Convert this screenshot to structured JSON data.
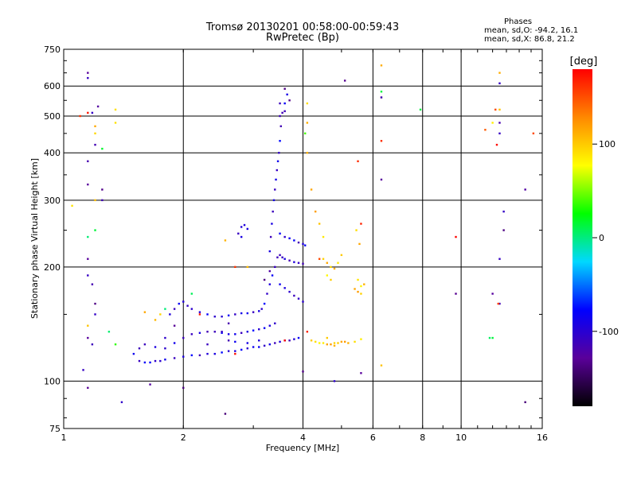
{
  "title_line1": "Tromsø 20130201 00:58:00-00:59:43",
  "title_line2": "RwPretec (Bp)",
  "stats": {
    "heading": "Phases",
    "line_O": "mean, sd,O: -94.2, 16.1",
    "line_X": "mean, sd,X:  86.8, 21.2"
  },
  "colorbar": {
    "label": "[deg]",
    "tick_labels": [
      "100",
      "0",
      "-100"
    ],
    "tick_values": [
      100,
      0,
      -100
    ],
    "range": [
      -180,
      180
    ],
    "colors": [
      "#000000",
      "#5a009a",
      "#0000ff",
      "#00d8ff",
      "#00ff00",
      "#ffff00",
      "#ff8800",
      "#ff0000"
    ]
  },
  "chart_data": {
    "type": "scatter",
    "xlabel": "Frequency [MHz]",
    "ylabel": "Stationary phase Virtual Height [km]",
    "xscale": "log",
    "yscale": "log",
    "xlim": [
      1,
      16
    ],
    "ylim": [
      75,
      750
    ],
    "xticks": [
      1,
      2,
      4,
      6,
      8,
      10,
      16
    ],
    "xtick_labels": [
      "1",
      "2",
      "4",
      "6",
      "8",
      "10",
      "16"
    ],
    "yticks": [
      75,
      100,
      200,
      300,
      400,
      500,
      600,
      750
    ],
    "ytick_labels": [
      "75",
      "100",
      "200",
      "300",
      "400",
      "500",
      "600",
      "750"
    ],
    "grid": true,
    "color_dimension": "phase [deg]",
    "series": [
      {
        "color_phase": -95,
        "points": [
          [
            1.55,
            113
          ],
          [
            1.6,
            112
          ],
          [
            1.65,
            112
          ],
          [
            1.7,
            113
          ],
          [
            1.75,
            113
          ],
          [
            1.8,
            114
          ],
          [
            1.9,
            115
          ],
          [
            2.0,
            116
          ],
          [
            2.1,
            117
          ],
          [
            2.2,
            117
          ],
          [
            2.3,
            118
          ],
          [
            2.4,
            118
          ],
          [
            2.5,
            119
          ],
          [
            2.6,
            120
          ],
          [
            2.7,
            120
          ],
          [
            2.8,
            121
          ],
          [
            2.9,
            122
          ],
          [
            3.0,
            123
          ],
          [
            3.1,
            123
          ],
          [
            3.2,
            124
          ],
          [
            3.3,
            125
          ],
          [
            3.4,
            126
          ],
          [
            3.5,
            127
          ],
          [
            3.6,
            128
          ],
          [
            3.7,
            128
          ],
          [
            3.8,
            129
          ],
          [
            3.9,
            130
          ],
          [
            1.5,
            118
          ],
          [
            1.55,
            122
          ],
          [
            1.6,
            125
          ],
          [
            1.7,
            123
          ],
          [
            1.8,
            122
          ],
          [
            1.9,
            126
          ],
          [
            2.0,
            130
          ],
          [
            2.1,
            133
          ],
          [
            2.2,
            134
          ],
          [
            2.3,
            135
          ],
          [
            2.4,
            135
          ],
          [
            2.5,
            134
          ],
          [
            2.6,
            133
          ],
          [
            2.7,
            133
          ],
          [
            2.8,
            134
          ],
          [
            2.9,
            135
          ],
          [
            3.0,
            136
          ],
          [
            3.1,
            137
          ],
          [
            3.2,
            138
          ],
          [
            3.3,
            140
          ],
          [
            3.4,
            142
          ],
          [
            1.85,
            150
          ],
          [
            1.9,
            155
          ],
          [
            1.95,
            160
          ],
          [
            2.0,
            162
          ],
          [
            2.05,
            158
          ],
          [
            2.1,
            155
          ],
          [
            2.2,
            152
          ],
          [
            2.3,
            150
          ],
          [
            2.4,
            148
          ],
          [
            2.5,
            148
          ],
          [
            2.6,
            149
          ],
          [
            2.7,
            150
          ],
          [
            2.8,
            151
          ],
          [
            2.9,
            151
          ],
          [
            3.0,
            152
          ],
          [
            3.1,
            153
          ],
          [
            3.15,
            155
          ],
          [
            3.2,
            160
          ],
          [
            3.25,
            170
          ],
          [
            3.3,
            180
          ],
          [
            3.35,
            190
          ],
          [
            3.4,
            200
          ],
          [
            3.45,
            212
          ],
          [
            3.5,
            215
          ],
          [
            3.55,
            212
          ],
          [
            3.6,
            210
          ],
          [
            3.7,
            208
          ],
          [
            3.8,
            206
          ],
          [
            3.9,
            205
          ],
          [
            4.0,
            204
          ],
          [
            3.3,
            220
          ],
          [
            3.32,
            240
          ],
          [
            3.34,
            260
          ],
          [
            3.36,
            280
          ],
          [
            3.38,
            300
          ],
          [
            3.4,
            320
          ],
          [
            3.42,
            340
          ],
          [
            3.44,
            360
          ],
          [
            3.46,
            380
          ],
          [
            3.48,
            400
          ],
          [
            3.5,
            430
          ],
          [
            3.52,
            470
          ],
          [
            3.55,
            510
          ],
          [
            3.6,
            540
          ],
          [
            3.65,
            570
          ],
          [
            3.5,
            245
          ],
          [
            3.6,
            240
          ],
          [
            3.7,
            238
          ],
          [
            3.8,
            235
          ],
          [
            3.9,
            232
          ],
          [
            4.0,
            230
          ],
          [
            4.05,
            228
          ],
          [
            2.75,
            245
          ],
          [
            2.8,
            255
          ],
          [
            2.85,
            258
          ],
          [
            2.9,
            252
          ],
          [
            2.8,
            240
          ],
          [
            3.5,
            180
          ],
          [
            3.6,
            176
          ],
          [
            3.7,
            172
          ],
          [
            3.8,
            168
          ],
          [
            3.9,
            165
          ],
          [
            4.0,
            162
          ],
          [
            2.5,
            135
          ],
          [
            2.6,
            128
          ],
          [
            2.7,
            127
          ],
          [
            2.9,
            126
          ],
          [
            3.1,
            128
          ]
        ]
      },
      {
        "color_phase": 100,
        "points": [
          [
            4.2,
            128
          ],
          [
            4.3,
            127
          ],
          [
            4.4,
            126
          ],
          [
            4.5,
            126
          ],
          [
            4.6,
            125
          ],
          [
            4.7,
            125
          ],
          [
            4.8,
            126
          ],
          [
            4.9,
            126
          ],
          [
            5.0,
            127
          ],
          [
            5.1,
            127
          ],
          [
            5.2,
            126
          ],
          [
            5.4,
            127
          ],
          [
            5.6,
            129
          ],
          [
            4.5,
            210
          ],
          [
            4.6,
            205
          ],
          [
            4.7,
            200
          ],
          [
            4.8,
            198
          ],
          [
            4.9,
            205
          ],
          [
            5.0,
            215
          ],
          [
            4.6,
            190
          ],
          [
            4.7,
            185
          ],
          [
            5.4,
            175
          ],
          [
            5.5,
            172
          ],
          [
            5.6,
            178
          ],
          [
            5.7,
            180
          ],
          [
            5.5,
            185
          ],
          [
            5.6,
            170
          ],
          [
            4.1,
            540
          ],
          [
            4.1,
            480
          ],
          [
            4.1,
            400
          ],
          [
            4.2,
            320
          ],
          [
            4.3,
            280
          ],
          [
            4.4,
            260
          ],
          [
            4.5,
            240
          ],
          [
            1.35,
            520
          ],
          [
            1.35,
            480
          ],
          [
            1.2,
            470
          ],
          [
            1.2,
            450
          ],
          [
            1.2,
            300
          ],
          [
            1.05,
            290
          ],
          [
            1.15,
            140
          ],
          [
            1.6,
            152
          ],
          [
            1.7,
            145
          ],
          [
            1.75,
            150
          ],
          [
            2.55,
            235
          ],
          [
            2.9,
            200
          ],
          [
            5.45,
            250
          ],
          [
            5.55,
            230
          ],
          [
            6.3,
            680
          ],
          [
            6.3,
            560
          ],
          [
            6.3,
            110
          ],
          [
            4.6,
            130
          ],
          [
            4.8,
            124
          ],
          [
            12.5,
            650
          ],
          [
            12.5,
            520
          ],
          [
            12.0,
            480
          ]
        ]
      },
      {
        "color_phase": -120,
        "points": [
          [
            1.15,
            650
          ],
          [
            1.15,
            630
          ],
          [
            1.18,
            510
          ],
          [
            1.22,
            530
          ],
          [
            1.2,
            420
          ],
          [
            1.25,
            320
          ],
          [
            1.15,
            380
          ],
          [
            1.15,
            330
          ],
          [
            1.25,
            300
          ],
          [
            1.15,
            210
          ],
          [
            1.15,
            190
          ],
          [
            1.18,
            180
          ],
          [
            1.2,
            160
          ],
          [
            1.2,
            150
          ],
          [
            1.15,
            130
          ],
          [
            1.18,
            125
          ],
          [
            1.12,
            107
          ],
          [
            1.15,
            96
          ],
          [
            1.4,
            88
          ],
          [
            1.65,
            98
          ],
          [
            2.0,
            96
          ],
          [
            2.55,
            82
          ],
          [
            4.0,
            106
          ],
          [
            4.8,
            100
          ],
          [
            5.1,
            620
          ],
          [
            6.3,
            340
          ],
          [
            5.6,
            105
          ],
          [
            6.3,
            560
          ],
          [
            9.7,
            170
          ],
          [
            12.5,
            610
          ],
          [
            12.5,
            480
          ],
          [
            12.5,
            450
          ],
          [
            12.8,
            280
          ],
          [
            12.8,
            250
          ],
          [
            12.5,
            210
          ],
          [
            12.0,
            170
          ],
          [
            12.5,
            160
          ],
          [
            14.5,
            320
          ],
          [
            14.5,
            88
          ],
          [
            1.8,
            130
          ],
          [
            1.9,
            140
          ],
          [
            2.3,
            125
          ],
          [
            2.6,
            142
          ],
          [
            3.6,
            590
          ],
          [
            3.7,
            550
          ],
          [
            3.5,
            540
          ],
          [
            3.6,
            515
          ],
          [
            3.5,
            500
          ],
          [
            3.3,
            195
          ],
          [
            3.2,
            185
          ]
        ]
      },
      {
        "color_phase": 160,
        "points": [
          [
            1.15,
            510
          ],
          [
            1.1,
            500
          ],
          [
            4.1,
            135
          ],
          [
            5.5,
            380
          ],
          [
            5.6,
            260
          ],
          [
            9.7,
            240
          ],
          [
            11.5,
            460
          ],
          [
            12.2,
            520
          ],
          [
            12.3,
            420
          ],
          [
            15.2,
            450
          ],
          [
            12.4,
            160
          ],
          [
            2.2,
            150
          ],
          [
            2.7,
            118
          ],
          [
            2.7,
            200
          ],
          [
            3.6,
            128
          ],
          [
            4.4,
            210
          ],
          [
            6.3,
            430
          ]
        ]
      },
      {
        "color_phase": 20,
        "points": [
          [
            1.15,
            240
          ],
          [
            1.2,
            250
          ],
          [
            1.25,
            410
          ],
          [
            1.3,
            135
          ],
          [
            1.35,
            125
          ],
          [
            7.9,
            520
          ],
          [
            11.8,
            130
          ],
          [
            12.0,
            130
          ],
          [
            1.8,
            155
          ],
          [
            2.1,
            170
          ],
          [
            6.3,
            580
          ],
          [
            4.05,
            450
          ]
        ]
      }
    ]
  }
}
